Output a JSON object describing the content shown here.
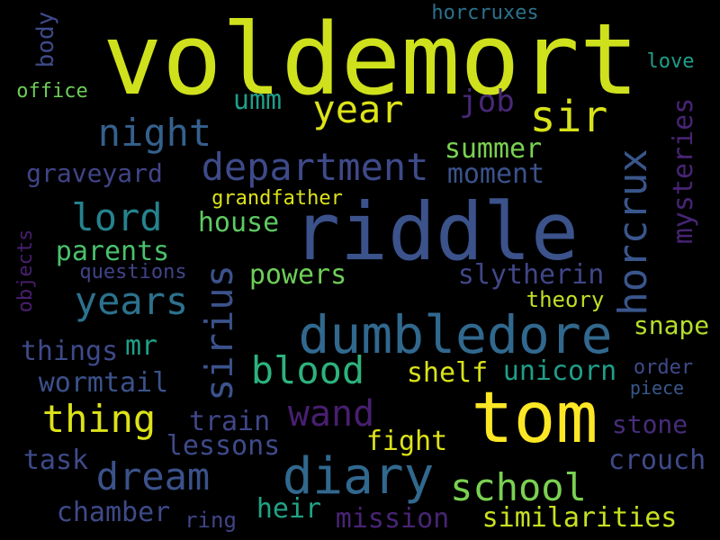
{
  "words": [
    {
      "id": "voldemort",
      "text": "voldemort",
      "color": "#cfe11c"
    },
    {
      "id": "riddle",
      "text": "riddle",
      "color": "#3b528b"
    },
    {
      "id": "tom",
      "text": "tom",
      "color": "#fde725"
    },
    {
      "id": "dumbledore",
      "text": "dumbledore",
      "color": "#31688e"
    },
    {
      "id": "diary",
      "text": "diary",
      "color": "#31688e"
    },
    {
      "id": "sir",
      "text": "sir",
      "color": "#d8e219"
    },
    {
      "id": "department",
      "text": "department",
      "color": "#3e4a89"
    },
    {
      "id": "horcrux",
      "text": "horcrux",
      "color": "#39568c"
    },
    {
      "id": "sirius",
      "text": "sirius",
      "color": "#3b528b"
    },
    {
      "id": "year",
      "text": "year",
      "color": "#dde318"
    },
    {
      "id": "night",
      "text": "night",
      "color": "#35608d"
    },
    {
      "id": "lord",
      "text": "lord",
      "color": "#26828e"
    },
    {
      "id": "years",
      "text": "years",
      "color": "#2c728e"
    },
    {
      "id": "blood",
      "text": "blood",
      "color": "#2db27d"
    },
    {
      "id": "wand",
      "text": "wand",
      "color": "#481f70"
    },
    {
      "id": "thing",
      "text": "thing",
      "color": "#dde318"
    },
    {
      "id": "dream",
      "text": "dream",
      "color": "#3b528b"
    },
    {
      "id": "school",
      "text": "school",
      "color": "#7ad151"
    },
    {
      "id": "mysteries",
      "text": "mysteries",
      "color": "#482475"
    },
    {
      "id": "graveyard",
      "text": "graveyard",
      "color": "#414487"
    },
    {
      "id": "parents",
      "text": "parents",
      "color": "#4ac16d"
    },
    {
      "id": "slytherin",
      "text": "slytherin",
      "color": "#404688"
    },
    {
      "id": "unicorn",
      "text": "unicorn",
      "color": "#1f9e89"
    },
    {
      "id": "shelf",
      "text": "shelf",
      "color": "#d8e219"
    },
    {
      "id": "wormtail",
      "text": "wormtail",
      "color": "#3b528b"
    },
    {
      "id": "things",
      "text": "things",
      "color": "#3e4a89"
    },
    {
      "id": "snape",
      "text": "snape",
      "color": "#b5de2b"
    },
    {
      "id": "stone",
      "text": "stone",
      "color": "#472c7a"
    },
    {
      "id": "crouch",
      "text": "crouch",
      "color": "#3e4a89"
    },
    {
      "id": "fight",
      "text": "fight",
      "color": "#dde318"
    },
    {
      "id": "lessons",
      "text": "lessons",
      "color": "#3e4a89"
    },
    {
      "id": "train",
      "text": "train",
      "color": "#404688"
    },
    {
      "id": "task",
      "text": "task",
      "color": "#3e4a89"
    },
    {
      "id": "chamber",
      "text": "chamber",
      "color": "#3e4a89"
    },
    {
      "id": "mission",
      "text": "mission",
      "color": "#482475"
    },
    {
      "id": "similarities",
      "text": "similarities",
      "color": "#c8e020"
    },
    {
      "id": "heir",
      "text": "heir",
      "color": "#20a386"
    },
    {
      "id": "ring",
      "text": "ring",
      "color": "#414487"
    },
    {
      "id": "summer",
      "text": "summer",
      "color": "#7ad151"
    },
    {
      "id": "moment",
      "text": "moment",
      "color": "#3b528b"
    },
    {
      "id": "house",
      "text": "house",
      "color": "#5ec962"
    },
    {
      "id": "powers",
      "text": "powers",
      "color": "#6ece58"
    },
    {
      "id": "grandfather",
      "text": "grandfather",
      "color": "#dde318"
    },
    {
      "id": "questions",
      "text": "questions",
      "color": "#414487"
    },
    {
      "id": "theory",
      "text": "theory",
      "color": "#c2df23"
    },
    {
      "id": "order",
      "text": "order",
      "color": "#3e4a89"
    },
    {
      "id": "piece",
      "text": "piece",
      "color": "#38588c"
    },
    {
      "id": "mr",
      "text": "mr",
      "color": "#1fa188"
    },
    {
      "id": "umm",
      "text": "umm",
      "color": "#1f9e89"
    },
    {
      "id": "job",
      "text": "job",
      "color": "#482878"
    },
    {
      "id": "horcruxes",
      "text": "horcruxes",
      "color": "#2c728e"
    },
    {
      "id": "love",
      "text": "love",
      "color": "#1f9e89"
    },
    {
      "id": "office",
      "text": "office",
      "color": "#6ece58"
    },
    {
      "id": "body",
      "text": "body",
      "color": "#3e4a89"
    },
    {
      "id": "objects",
      "text": "objects",
      "color": "#481f70"
    }
  ]
}
